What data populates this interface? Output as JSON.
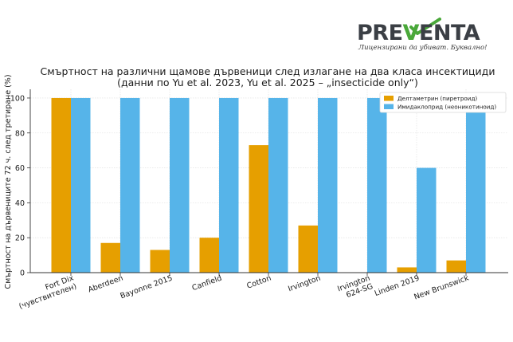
{
  "logo": {
    "brand_pre": "PRE",
    "brand_v": "V",
    "brand_post": "ENTA",
    "tagline": "Лицензирани да убиват. Буквално!"
  },
  "chart_data": {
    "type": "bar",
    "title": "Смъртност на различни щамове дървеници след излагане на два класа инсектициди",
    "subtitle": "(данни по Yu et al. 2023, Yu et al. 2025 – „insecticide only“)",
    "ylabel": "Смъртност на дървениците 72 ч. след третиране (%)",
    "xlabel": "",
    "ylim": [
      0,
      105
    ],
    "yticks": [
      0,
      20,
      40,
      60,
      80,
      100
    ],
    "grid": true,
    "legend_position": "top-right",
    "categories": [
      [
        "Fort Dix",
        "(чувствителен)"
      ],
      [
        "Aberdeen"
      ],
      [
        "Bayonne 2015"
      ],
      [
        "Canfield"
      ],
      [
        "Cotton"
      ],
      [
        "Irvington"
      ],
      [
        "Irvington",
        "624-SG"
      ],
      [
        "Linden 2019"
      ],
      [
        "New Brunswick"
      ]
    ],
    "series": [
      {
        "name": "Делтаметрин (пиретроид)",
        "color": "#e69f00",
        "values": [
          100,
          17,
          13,
          20,
          73,
          27,
          0,
          3,
          7
        ]
      },
      {
        "name": "Имидаклоприд (неоникотиноид)",
        "color": "#56b4e9",
        "values": [
          100,
          100,
          100,
          100,
          100,
          100,
          100,
          60,
          100
        ]
      }
    ]
  }
}
